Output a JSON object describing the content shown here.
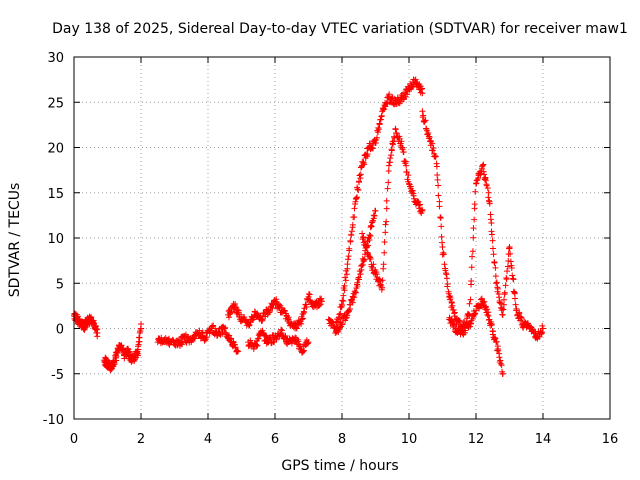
{
  "chart_data": {
    "type": "scatter",
    "title": "Day 138 of 2025, Sidereal Day-to-day VTEC variation (SDTVAR) for receiver maw1",
    "xlabel": "GPS time / hours",
    "ylabel": "SDTVAR / TECUs",
    "xlim": [
      0,
      16
    ],
    "ylim": [
      -10,
      30
    ],
    "xticks": [
      0,
      2,
      4,
      6,
      8,
      10,
      12,
      14,
      16
    ],
    "yticks": [
      -10,
      -5,
      0,
      5,
      10,
      15,
      20,
      25,
      30
    ],
    "grid": true,
    "marker": "+",
    "color": "#ff0000",
    "series": [
      {
        "name": "SDTVAR",
        "segments": [
          {
            "t": [
              0.0,
              0.1,
              0.2,
              0.3,
              0.4,
              0.5,
              0.6,
              0.7
            ],
            "v": [
              1.5,
              1.0,
              0.5,
              0.2,
              0.8,
              1.0,
              0.5,
              -0.5
            ]
          },
          {
            "t": [
              0.9,
              1.0,
              1.1,
              1.2,
              1.3,
              1.4,
              1.5,
              1.6,
              1.7,
              1.8,
              1.9,
              2.0
            ],
            "v": [
              -3.5,
              -4.0,
              -4.3,
              -3.8,
              -2.5,
              -2.0,
              -3.0,
              -2.5,
              -3.5,
              -3.2,
              -2.8,
              0.5
            ]
          },
          {
            "t": [
              2.5,
              2.7,
              2.9,
              3.1,
              3.3,
              3.5,
              3.7,
              3.9,
              4.1,
              4.3,
              4.5,
              4.7,
              4.9
            ],
            "v": [
              -1.5,
              -1.2,
              -1.5,
              -1.8,
              -1.0,
              -1.5,
              -0.5,
              -1.0,
              0.0,
              -0.5,
              0.0,
              -1.5,
              -2.5
            ]
          },
          {
            "t": [
              4.6,
              4.8,
              5.0,
              5.2,
              5.4,
              5.6,
              5.8,
              6.0,
              6.2,
              6.4,
              6.6,
              6.8,
              7.0,
              7.2,
              7.4
            ],
            "v": [
              1.5,
              2.5,
              1.0,
              0.5,
              1.5,
              1.0,
              2.0,
              3.0,
              2.0,
              1.0,
              0.0,
              1.0,
              3.5,
              2.5,
              3.0
            ]
          },
          {
            "t": [
              5.2,
              5.4,
              5.6,
              5.8,
              6.0,
              6.2,
              6.4,
              6.6,
              6.8,
              7.0
            ],
            "v": [
              -1.5,
              -2.0,
              -0.5,
              -1.5,
              -1.0,
              -0.5,
              -1.5,
              -1.0,
              -2.5,
              -1.5
            ]
          },
          {
            "t": [
              7.6,
              7.8,
              8.0,
              8.2,
              8.4,
              8.6,
              8.8,
              9.0,
              9.2,
              9.4,
              9.6,
              9.8,
              10.0,
              10.2,
              10.4
            ],
            "v": [
              1.0,
              0.0,
              2.5,
              8.0,
              14.0,
              18.0,
              20.0,
              20.5,
              24.0,
              25.5,
              25.0,
              25.5,
              26.5,
              27.5,
              26.0
            ]
          },
          {
            "t": [
              7.8,
              8.0,
              8.2,
              8.4,
              8.6,
              8.8,
              9.0
            ],
            "v": [
              -0.5,
              0.5,
              2.0,
              4.0,
              7.0,
              10.0,
              13.0
            ]
          },
          {
            "t": [
              8.6,
              8.8,
              9.0,
              9.2,
              9.4,
              9.6,
              9.8,
              10.0,
              10.2,
              10.4
            ],
            "v": [
              10.5,
              8.0,
              6.0,
              4.5,
              18.0,
              22.0,
              20.0,
              16.0,
              14.0,
              13.0
            ]
          },
          {
            "t": [
              10.4,
              10.6,
              10.8,
              11.0,
              11.2,
              11.4,
              11.6,
              11.8,
              12.0,
              12.2,
              12.4,
              12.6,
              12.8,
              13.0,
              13.2,
              13.4,
              13.6,
              13.8,
              14.0
            ],
            "v": [
              24.0,
              21.0,
              19.0,
              9.0,
              3.5,
              1.0,
              0.0,
              1.5,
              16.0,
              18.0,
              14.0,
              5.0,
              1.5,
              9.0,
              2.0,
              0.5,
              0.0,
              -1.0,
              0.0
            ]
          },
          {
            "t": [
              11.2,
              11.4,
              11.6,
              11.8,
              12.0,
              12.2,
              12.4,
              12.6,
              12.8
            ],
            "v": [
              1.0,
              0.0,
              -0.5,
              0.5,
              2.0,
              3.0,
              1.0,
              -1.5,
              -5.0
            ]
          }
        ]
      }
    ]
  }
}
